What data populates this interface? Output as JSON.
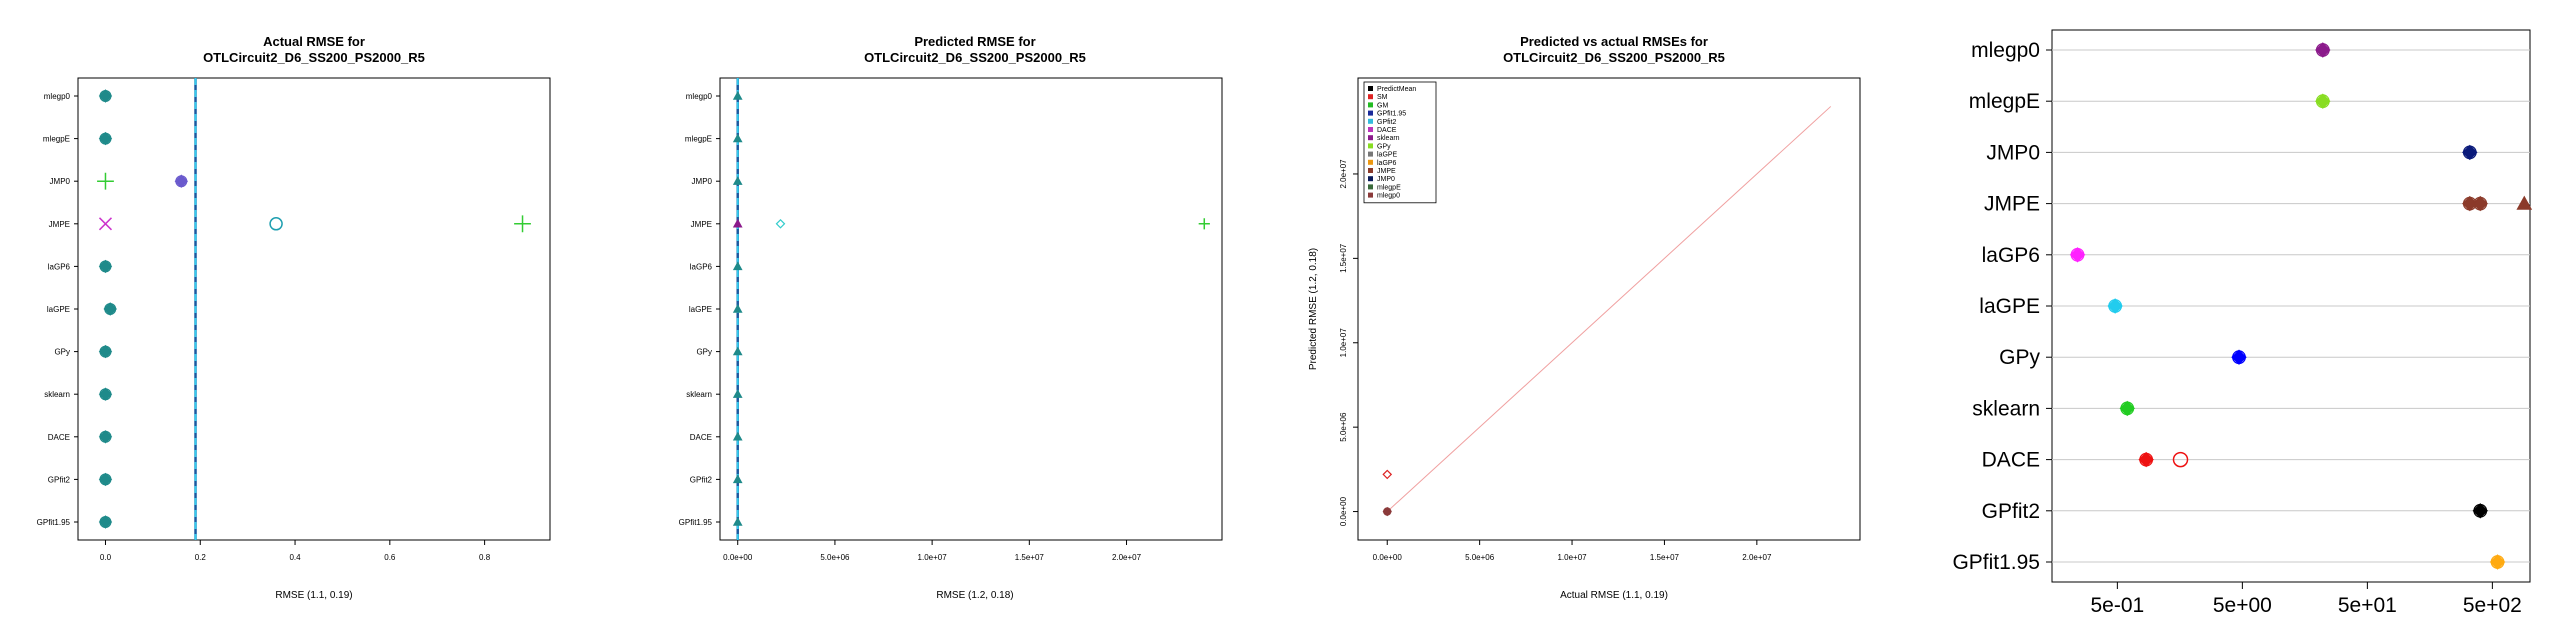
{
  "chart_data": [
    {
      "type": "scatter",
      "title": [
        "Actual RMSE for",
        "OTLCircuit2_D6_SS200_PS2000_R5"
      ],
      "xlabel": "RMSE (1.1, 0.19)",
      "xlim": [
        -0.02,
        0.9
      ],
      "xticks": [
        0,
        0.2,
        0.4,
        0.6,
        0.8
      ],
      "xtick_labels": [
        "0.0",
        "0.2",
        "0.4",
        "0.6",
        "0.8"
      ],
      "vline": 0.19,
      "categories": [
        "mlegp0",
        "mlegpE",
        "JMP0",
        "JMPE",
        "laGP6",
        "laGPE",
        "GPy",
        "sklearn",
        "DACE",
        "GPfit2",
        "GPfit1.95"
      ],
      "points": [
        {
          "row": 0,
          "x": 0.0,
          "shape": "cluster",
          "color": "#1f8a8a"
        },
        {
          "row": 1,
          "x": 0.0,
          "shape": "cluster",
          "color": "#1f8a8a"
        },
        {
          "row": 2,
          "x": 0.0,
          "shape": "plus",
          "color": "#33cc33"
        },
        {
          "row": 2,
          "x": 0.16,
          "shape": "cluster",
          "color": "#6a5acd"
        },
        {
          "row": 3,
          "x": 0.0,
          "shape": "x",
          "color": "#cc33cc"
        },
        {
          "row": 3,
          "x": 0.36,
          "shape": "circle",
          "color": "#1f9fb0"
        },
        {
          "row": 3,
          "x": 0.88,
          "shape": "plus",
          "color": "#33cc33"
        },
        {
          "row": 4,
          "x": 0.0,
          "shape": "cluster",
          "color": "#1f8a8a"
        },
        {
          "row": 5,
          "x": 0.01,
          "shape": "cluster",
          "color": "#1f8a8a"
        },
        {
          "row": 6,
          "x": 0.0,
          "shape": "cluster",
          "color": "#1f8a8a"
        },
        {
          "row": 7,
          "x": 0.0,
          "shape": "cluster",
          "color": "#1f8a8a"
        },
        {
          "row": 8,
          "x": 0.0,
          "shape": "cluster",
          "color": "#1f8a8a"
        },
        {
          "row": 9,
          "x": 0.0,
          "shape": "cluster",
          "color": "#1f8a8a"
        },
        {
          "row": 10,
          "x": 0.0,
          "shape": "cluster",
          "color": "#1f8a8a"
        }
      ]
    },
    {
      "type": "scatter",
      "title": [
        "Predicted RMSE for",
        "OTLCircuit2_D6_SS200_PS2000_R5"
      ],
      "xlabel": "RMSE (1.2, 0.18)",
      "xlim": [
        -500000,
        24500000
      ],
      "xticks": [
        0,
        5000000,
        10000000,
        15000000,
        20000000
      ],
      "xtick_labels": [
        "0.0e+00",
        "5.0e+06",
        "1.0e+07",
        "1.5e+07",
        "2.0e+07"
      ],
      "vline": 0.18,
      "categories": [
        "mlegp0",
        "mlegpE",
        "JMP0",
        "JMPE",
        "laGP6",
        "laGPE",
        "GPy",
        "sklearn",
        "DACE",
        "GPfit2",
        "GPfit1.95"
      ],
      "points": [
        {
          "row": 0,
          "x": 0,
          "shape": "tri",
          "color": "#1f8a8a"
        },
        {
          "row": 1,
          "x": 0,
          "shape": "tri",
          "color": "#1f8a8a"
        },
        {
          "row": 2,
          "x": 0,
          "shape": "tri",
          "color": "#1f8a8a"
        },
        {
          "row": 3,
          "x": 0,
          "shape": "tri",
          "color": "#8b1a8b"
        },
        {
          "row": 3,
          "x": 2200000,
          "shape": "diamond",
          "color": "#33cccc"
        },
        {
          "row": 3,
          "x": 24000000,
          "shape": "plus",
          "color": "#33cc33"
        },
        {
          "row": 4,
          "x": 0,
          "shape": "tri",
          "color": "#1f8a8a"
        },
        {
          "row": 5,
          "x": 0,
          "shape": "tri",
          "color": "#1f8a8a"
        },
        {
          "row": 6,
          "x": 0,
          "shape": "tri",
          "color": "#1f8a8a"
        },
        {
          "row": 7,
          "x": 0,
          "shape": "tri",
          "color": "#1f8a8a"
        },
        {
          "row": 8,
          "x": 0,
          "shape": "tri",
          "color": "#1f8a8a"
        },
        {
          "row": 9,
          "x": 0,
          "shape": "tri",
          "color": "#1f8a8a"
        },
        {
          "row": 10,
          "x": 0,
          "shape": "tri",
          "color": "#1f8a8a"
        }
      ]
    },
    {
      "type": "scatter",
      "title": [
        "Predicted vs actual RMSEs for",
        "OTLCircuit2_D6_SS200_PS2000_R5"
      ],
      "xlabel": "Actual RMSE (1.1, 0.19)",
      "ylabel": "Predicted RMSE (1.2, 0.18)",
      "xlim": [
        -500000,
        24500000
      ],
      "ylim": [
        -500000,
        24500000
      ],
      "xticks": [
        0,
        5000000,
        10000000,
        15000000,
        20000000
      ],
      "xtick_labels": [
        "0.0e+00",
        "5.0e+06",
        "1.0e+07",
        "1.5e+07",
        "2.0e+07"
      ],
      "yticks": [
        0,
        5000000,
        10000000,
        15000000,
        20000000
      ],
      "ytick_labels": [
        "0.0e+00",
        "5.0e+06",
        "1.0e+07",
        "1.5e+07",
        "2.0e+07"
      ],
      "diagonal": true,
      "legend_position": "top-left",
      "legend": [
        {
          "name": "PredictMean",
          "color": "#000000"
        },
        {
          "name": "SM",
          "color": "#dd2222"
        },
        {
          "name": "GM",
          "color": "#22bb22"
        },
        {
          "name": "GPfit1.95",
          "color": "#1a2a9a"
        },
        {
          "name": "GPfit2",
          "color": "#33bbdd"
        },
        {
          "name": "DACE",
          "color": "#bb33bb"
        },
        {
          "name": "sklearn",
          "color": "#8b1a8b"
        },
        {
          "name": "GPy",
          "color": "#88dd22"
        },
        {
          "name": "laGPE",
          "color": "#777777"
        },
        {
          "name": "laGP6",
          "color": "#ee9911"
        },
        {
          "name": "JMPE",
          "color": "#8b3a2a"
        },
        {
          "name": "JMP0",
          "color": "#0a1a5a"
        },
        {
          "name": "mlegpE",
          "color": "#3a6a3a"
        },
        {
          "name": "mlegp0",
          "color": "#8b3a3a"
        }
      ],
      "points": [
        {
          "x": 0,
          "y": 0,
          "shape": "cluster",
          "color": "#8b3a3a"
        },
        {
          "x": 0,
          "y": 2200000,
          "shape": "diamond",
          "color": "#dd2222"
        }
      ]
    },
    {
      "type": "scatter",
      "xscale": "log",
      "xlim": [
        0.15,
        1000
      ],
      "xticks": [
        0.5,
        5,
        50,
        500
      ],
      "xtick_labels": [
        "5e-01",
        "5e+00",
        "5e+01",
        "5e+02"
      ],
      "grid": true,
      "categories": [
        "mlegp0",
        "mlegpE",
        "JMP0",
        "JMPE",
        "laGP6",
        "laGPE",
        "GPy",
        "sklearn",
        "DACE",
        "GPfit2",
        "GPfit1.95"
      ],
      "points": [
        {
          "row": 0,
          "x": 22,
          "shape": "cluster",
          "color": "#8b1a8b"
        },
        {
          "row": 1,
          "x": 22,
          "shape": "cluster",
          "color": "#88dd22"
        },
        {
          "row": 2,
          "x": 330,
          "shape": "cluster",
          "color": "#0a1a7a"
        },
        {
          "row": 3,
          "x": 330,
          "shape": "cluster",
          "color": "#8b3a2a"
        },
        {
          "row": 3,
          "x": 400,
          "shape": "cluster",
          "color": "#8b3a2a"
        },
        {
          "row": 3,
          "x": 900,
          "shape": "tri",
          "color": "#8b3a2a"
        },
        {
          "row": 4,
          "x": 0.24,
          "shape": "cluster",
          "color": "#ff22ff"
        },
        {
          "row": 5,
          "x": 0.48,
          "shape": "cluster",
          "color": "#22ccee"
        },
        {
          "row": 6,
          "x": 4.7,
          "shape": "cluster",
          "color": "#0000ff"
        },
        {
          "row": 7,
          "x": 0.6,
          "shape": "cluster",
          "color": "#22cc22"
        },
        {
          "row": 8,
          "x": 0.85,
          "shape": "cluster",
          "color": "#ee1111"
        },
        {
          "row": 8,
          "x": 1.6,
          "shape": "circle",
          "color": "#ee1111"
        },
        {
          "row": 9,
          "x": 400,
          "shape": "cluster",
          "color": "#000000"
        },
        {
          "row": 10,
          "x": 550,
          "shape": "cluster",
          "color": "#ffaa11"
        }
      ]
    }
  ]
}
